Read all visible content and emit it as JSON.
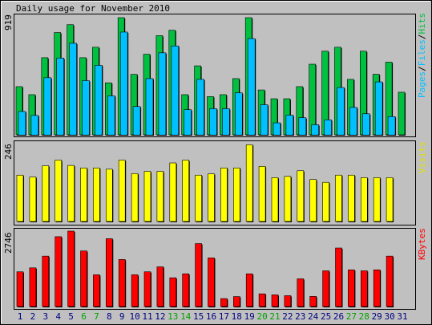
{
  "colors": {
    "background": "#C0C0C0",
    "hits": "#00C040",
    "files": "#00C0FF",
    "pages": "#00C0FF",
    "visits": "#FFFF00",
    "kbytes": "#FF0000",
    "weekend_label": "#00A000",
    "weekday_label": "#000080"
  },
  "chart_data": [
    {
      "type": "bar",
      "title": "Daily usage for November 2010",
      "categories": [
        "1",
        "2",
        "3",
        "4",
        "5",
        "6",
        "7",
        "8",
        "9",
        "10",
        "11",
        "12",
        "13",
        "14",
        "15",
        "16",
        "17",
        "18",
        "19",
        "20",
        "21",
        "22",
        "23",
        "24",
        "25",
        "26",
        "27",
        "28",
        "29",
        "30",
        "31"
      ],
      "weekend_days": [
        "6",
        "7",
        "13",
        "14",
        "20",
        "21",
        "27",
        "28"
      ],
      "ylabel": "Pages/Files/Hits",
      "ylabel_parts": [
        "Pages",
        "/",
        "Files",
        "/",
        "Hits"
      ],
      "ymax_label": "919",
      "ylim": [
        0,
        919
      ],
      "series": [
        {
          "name": "Hits",
          "values": [
            378,
            315,
            605,
            802,
            864,
            605,
            687,
            408,
            919,
            474,
            632,
            778,
            820,
            315,
            541,
            300,
            315,
            441,
            919,
            352,
            283,
            283,
            378,
            554,
            656,
            687,
            435,
            656,
            475,
            570,
            334
          ]
        },
        {
          "name": "Files",
          "values": [
            183,
            152,
            448,
            602,
            718,
            425,
            545,
            306,
            806,
            222,
            441,
            643,
            697,
            197,
            435,
            205,
            205,
            329,
            755,
            236,
            94,
            154,
            134,
            79,
            117,
            371,
            215,
            165,
            415,
            143,
            0
          ]
        },
        {
          "name": "Pages",
          "values": [
            174,
            140,
            440,
            592,
            708,
            417,
            535,
            296,
            797,
            214,
            433,
            633,
            686,
            188,
            426,
            196,
            196,
            322,
            745,
            227,
            83,
            143,
            126,
            70,
            109,
            362,
            206,
            157,
            406,
            134,
            0
          ]
        }
      ]
    },
    {
      "type": "bar",
      "ylabel": "Visits",
      "ymax_label": "246",
      "ylim": [
        0,
        246
      ],
      "series": [
        {
          "name": "Visits",
          "values": [
            148,
            142,
            178,
            196,
            179,
            171,
            171,
            167,
            196,
            153,
            160,
            160,
            187,
            196,
            148,
            152,
            171,
            171,
            245,
            176,
            140,
            144,
            162,
            134,
            125,
            148,
            148,
            140,
            140,
            140,
            0
          ]
        }
      ]
    },
    {
      "type": "bar",
      "ylabel": "KBytes",
      "ymax_label": "2746",
      "ylim": [
        0,
        2746
      ],
      "series": [
        {
          "name": "KBytes",
          "values": [
            1265,
            1409,
            1836,
            2544,
            2746,
            2024,
            1156,
            2470,
            1714,
            1156,
            1265,
            1446,
            1047,
            1192,
            2292,
            1772,
            290,
            363,
            1192,
            463,
            426,
            396,
            1010,
            370,
            1301,
            2132,
            1337,
            1301,
            1337,
            1836,
            0
          ]
        }
      ]
    }
  ]
}
